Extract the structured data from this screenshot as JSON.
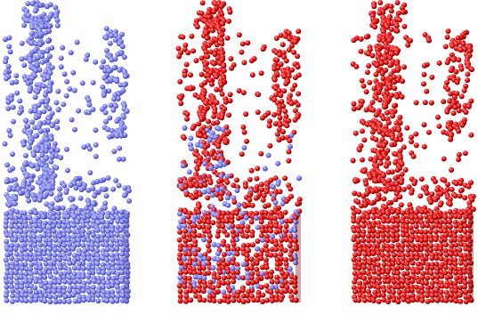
{
  "image": {
    "panels": [
      {
        "name": "particle-column-blue",
        "colors": {
          "body": "#7a7ee8",
          "highlight": "#c9ccff",
          "shade": "#3e41a6"
        },
        "fill_ratio": 1.0
      },
      {
        "name": "particle-column-mixed",
        "colors": {
          "body": "#e01010",
          "highlight": "#ff8a8a",
          "shade": "#7a0000"
        },
        "fill_ratio": 0.85,
        "secondary": {
          "body": "#7a7ee8",
          "highlight": "#c9ccff",
          "shade": "#3e41a6"
        }
      },
      {
        "name": "particle-column-red",
        "colors": {
          "body": "#e01010",
          "highlight": "#ff8a8a",
          "shade": "#7a0000"
        },
        "fill_ratio": 1.0
      }
    ],
    "background": "#ffffff"
  }
}
